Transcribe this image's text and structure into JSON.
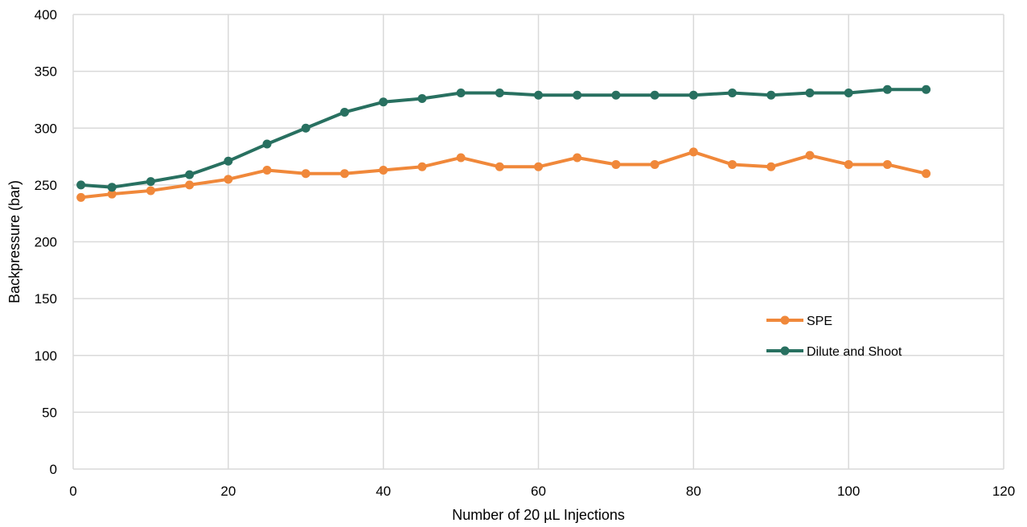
{
  "chart_data": {
    "type": "line",
    "xlabel": "Number of 20 µL Injections",
    "ylabel": "Backpressure (bar)",
    "xlim": [
      0,
      120
    ],
    "ylim": [
      0,
      400
    ],
    "xticks": [
      0,
      20,
      40,
      60,
      80,
      100,
      120
    ],
    "yticks": [
      0,
      50,
      100,
      150,
      200,
      250,
      300,
      350,
      400
    ],
    "grid": true,
    "legend_position": "right",
    "series": [
      {
        "name": "SPE",
        "color": "#f0883a",
        "x": [
          1,
          5,
          10,
          15,
          20,
          25,
          30,
          35,
          40,
          45,
          50,
          55,
          60,
          65,
          70,
          75,
          80,
          85,
          90,
          95,
          100,
          105,
          110
        ],
        "y": [
          239,
          242,
          245,
          250,
          255,
          263,
          260,
          260,
          263,
          266,
          274,
          266,
          266,
          274,
          268,
          268,
          279,
          268,
          266,
          276,
          268,
          268,
          260
        ]
      },
      {
        "name": "Dilute and Shoot",
        "color": "#287060",
        "x": [
          1,
          5,
          10,
          15,
          20,
          25,
          30,
          35,
          40,
          45,
          50,
          55,
          60,
          65,
          70,
          75,
          80,
          85,
          90,
          95,
          100,
          105,
          110
        ],
        "y": [
          250,
          248,
          253,
          259,
          271,
          286,
          300,
          314,
          323,
          326,
          331,
          331,
          329,
          329,
          329,
          329,
          329,
          331,
          329,
          331,
          331,
          334,
          334
        ]
      }
    ]
  }
}
